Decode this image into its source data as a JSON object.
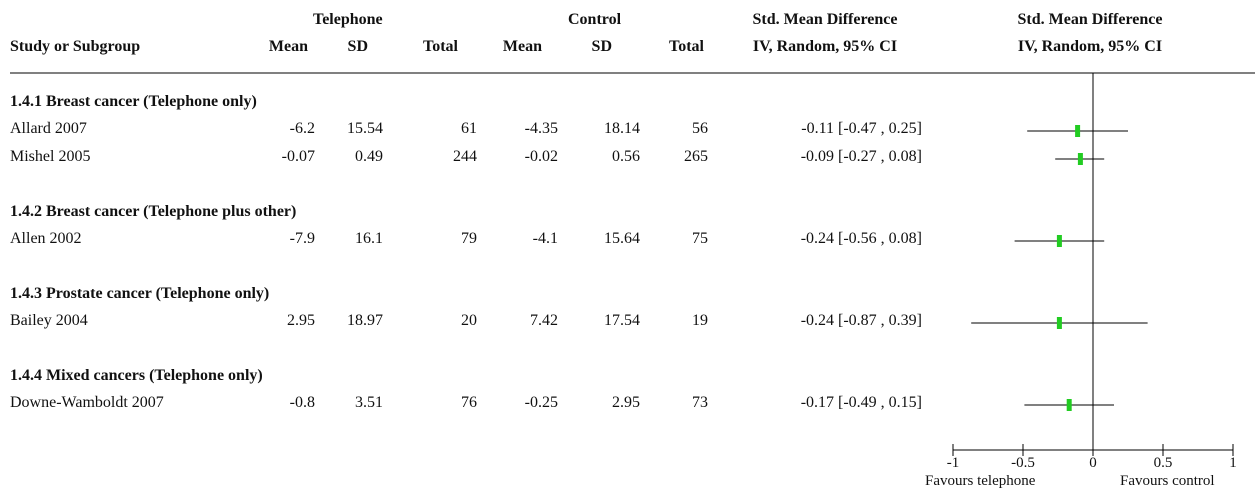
{
  "headers": {
    "study": "Study or Subgroup",
    "group1": "Telephone",
    "group2": "Control",
    "mean": "Mean",
    "sd": "SD",
    "total": "Total",
    "smd_title": "Std. Mean Difference",
    "smd_method": "IV, Random, 95% CI",
    "plot_title": "Std. Mean Difference",
    "plot_method": "IV, Random, 95% CI"
  },
  "subgroups": [
    {
      "title": "1.4.1 Breast cancer (Telephone only)",
      "studies": [
        {
          "name": "Allard 2007",
          "m1": "-6.2",
          "sd1": "15.54",
          "n1": "61",
          "m2": "-4.35",
          "sd2": "18.14",
          "n2": "56",
          "ci": "-0.11 [-0.47 , 0.25]"
        },
        {
          "name": "Mishel 2005",
          "m1": "-0.07",
          "sd1": "0.49",
          "n1": "244",
          "m2": "-0.02",
          "sd2": "0.56",
          "n2": "265",
          "ci": "-0.09 [-0.27 , 0.08]"
        }
      ]
    },
    {
      "title": "1.4.2 Breast cancer (Telephone plus other)",
      "studies": [
        {
          "name": "Allen 2002",
          "m1": "-7.9",
          "sd1": "16.1",
          "n1": "79",
          "m2": "-4.1",
          "sd2": "15.64",
          "n2": "75",
          "ci": "-0.24 [-0.56 , 0.08]"
        }
      ]
    },
    {
      "title": "1.4.3 Prostate cancer (Telephone only)",
      "studies": [
        {
          "name": "Bailey 2004",
          "m1": "2.95",
          "sd1": "18.97",
          "n1": "20",
          "m2": "7.42",
          "sd2": "17.54",
          "n2": "19",
          "ci": "-0.24 [-0.87 , 0.39]"
        }
      ]
    },
    {
      "title": "1.4.4 Mixed cancers (Telephone only)",
      "studies": [
        {
          "name": "Downe-Wamboldt 2007",
          "m1": "-0.8",
          "sd1": "3.51",
          "n1": "76",
          "m2": "-0.25",
          "sd2": "2.95",
          "n2": "73",
          "ci": "-0.17 [-0.49 , 0.15]"
        }
      ]
    }
  ],
  "chart_data": {
    "type": "forest",
    "xlim": [
      -1,
      1
    ],
    "ticks": [
      "-1",
      "-0.5",
      "0",
      "0.5",
      "1"
    ],
    "tick_values": [
      -1,
      -0.5,
      0,
      0.5,
      1
    ],
    "favours_left": "Favours telephone",
    "favours_right": "Favours control",
    "marker_color": "#22cc22",
    "points": [
      {
        "study": "Allard 2007",
        "estimate": -0.11,
        "lower": -0.47,
        "upper": 0.25
      },
      {
        "study": "Mishel 2005",
        "estimate": -0.09,
        "lower": -0.27,
        "upper": 0.08
      },
      {
        "study": "Allen 2002",
        "estimate": -0.24,
        "lower": -0.56,
        "upper": 0.08
      },
      {
        "study": "Bailey 2004",
        "estimate": -0.24,
        "lower": -0.87,
        "upper": 0.39
      },
      {
        "study": "Downe-Wamboldt 2007",
        "estimate": -0.17,
        "lower": -0.49,
        "upper": 0.15
      }
    ]
  }
}
